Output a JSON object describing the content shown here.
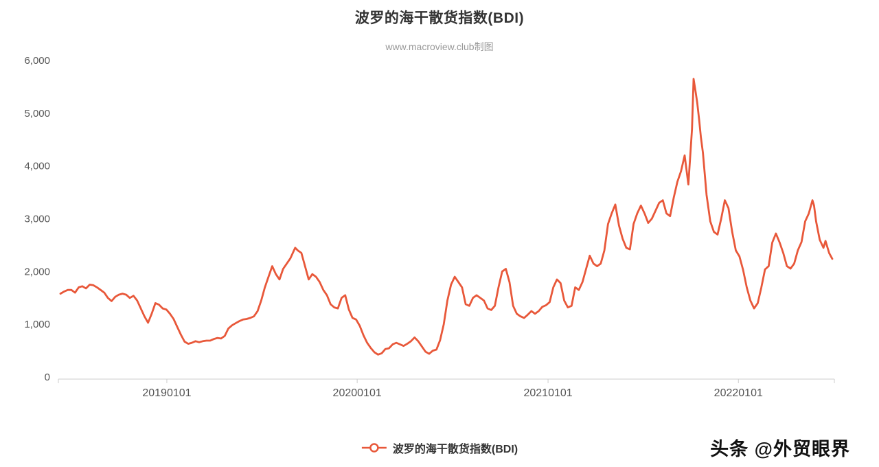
{
  "header": {
    "title": "波罗的海干散货指数(BDI)",
    "subtitle": "www.macroview.club制图"
  },
  "legend": {
    "label": "波罗的海干散货指数(BDI)"
  },
  "watermark": "头条 @外贸眼界",
  "chart_data": {
    "type": "line",
    "title": "波罗的海干散货指数(BDI)",
    "subtitle": "www.macroview.club制图",
    "series_name": "波罗的海干散货指数(BDI)",
    "line_color": "#e8583a",
    "background": "#ffffff",
    "grid": false,
    "legend_position": "bottom",
    "ylim": [
      0,
      6000
    ],
    "y_ticks": [
      0,
      1000,
      2000,
      3000,
      4000,
      5000,
      6000
    ],
    "y_tick_labels": [
      "0",
      "1,000",
      "2,000",
      "3,000",
      "4,000",
      "5,000",
      "6,000"
    ],
    "x_min": "20180607",
    "x_max": "20220704",
    "x_ticks": [
      "20190101",
      "20200101",
      "20210101",
      "20220101"
    ],
    "points": [
      [
        "20180611",
        1580
      ],
      [
        "20180618",
        1620
      ],
      [
        "20180625",
        1650
      ],
      [
        "20180702",
        1650
      ],
      [
        "20180709",
        1600
      ],
      [
        "20180716",
        1700
      ],
      [
        "20180723",
        1720
      ],
      [
        "20180730",
        1680
      ],
      [
        "20180806",
        1750
      ],
      [
        "20180813",
        1740
      ],
      [
        "20180820",
        1700
      ],
      [
        "20180827",
        1650
      ],
      [
        "20180903",
        1600
      ],
      [
        "20180910",
        1500
      ],
      [
        "20180917",
        1440
      ],
      [
        "20180924",
        1520
      ],
      [
        "20181001",
        1560
      ],
      [
        "20181008",
        1580
      ],
      [
        "20181015",
        1560
      ],
      [
        "20181022",
        1500
      ],
      [
        "20181029",
        1540
      ],
      [
        "20181105",
        1450
      ],
      [
        "20181112",
        1300
      ],
      [
        "20181119",
        1150
      ],
      [
        "20181126",
        1030
      ],
      [
        "20181203",
        1200
      ],
      [
        "20181210",
        1400
      ],
      [
        "20181217",
        1370
      ],
      [
        "20181224",
        1300
      ],
      [
        "20181231",
        1280
      ],
      [
        "20190107",
        1200
      ],
      [
        "20190114",
        1100
      ],
      [
        "20190121",
        950
      ],
      [
        "20190128",
        800
      ],
      [
        "20190204",
        670
      ],
      [
        "20190211",
        630
      ],
      [
        "20190218",
        650
      ],
      [
        "20190225",
        680
      ],
      [
        "20190304",
        660
      ],
      [
        "20190311",
        680
      ],
      [
        "20190318",
        690
      ],
      [
        "20190325",
        690
      ],
      [
        "20190401",
        720
      ],
      [
        "20190408",
        740
      ],
      [
        "20190415",
        730
      ],
      [
        "20190422",
        780
      ],
      [
        "20190429",
        920
      ],
      [
        "20190506",
        980
      ],
      [
        "20190513",
        1020
      ],
      [
        "20190520",
        1060
      ],
      [
        "20190527",
        1090
      ],
      [
        "20190603",
        1100
      ],
      [
        "20190610",
        1120
      ],
      [
        "20190617",
        1150
      ],
      [
        "20190624",
        1250
      ],
      [
        "20190701",
        1450
      ],
      [
        "20190708",
        1700
      ],
      [
        "20190715",
        1900
      ],
      [
        "20190722",
        2100
      ],
      [
        "20190729",
        1950
      ],
      [
        "20190805",
        1850
      ],
      [
        "20190812",
        2050
      ],
      [
        "20190819",
        2150
      ],
      [
        "20190826",
        2250
      ],
      [
        "20190904",
        2450
      ],
      [
        "20190909",
        2400
      ],
      [
        "20190916",
        2350
      ],
      [
        "20190923",
        2100
      ],
      [
        "20190930",
        1850
      ],
      [
        "20191007",
        1950
      ],
      [
        "20191014",
        1900
      ],
      [
        "20191021",
        1800
      ],
      [
        "20191028",
        1650
      ],
      [
        "20191104",
        1550
      ],
      [
        "20191111",
        1380
      ],
      [
        "20191118",
        1320
      ],
      [
        "20191125",
        1300
      ],
      [
        "20191202",
        1500
      ],
      [
        "20191209",
        1550
      ],
      [
        "20191216",
        1280
      ],
      [
        "20191223",
        1120
      ],
      [
        "20191230",
        1090
      ],
      [
        "20200106",
        970
      ],
      [
        "20200113",
        790
      ],
      [
        "20200120",
        650
      ],
      [
        "20200127",
        550
      ],
      [
        "20200203",
        470
      ],
      [
        "20200210",
        425
      ],
      [
        "20200217",
        450
      ],
      [
        "20200224",
        530
      ],
      [
        "20200302",
        545
      ],
      [
        "20200309",
        620
      ],
      [
        "20200316",
        650
      ],
      [
        "20200323",
        620
      ],
      [
        "20200330",
        590
      ],
      [
        "20200406",
        630
      ],
      [
        "20200413",
        680
      ],
      [
        "20200420",
        750
      ],
      [
        "20200427",
        680
      ],
      [
        "20200504",
        580
      ],
      [
        "20200511",
        480
      ],
      [
        "20200518",
        440
      ],
      [
        "20200525",
        500
      ],
      [
        "20200601",
        520
      ],
      [
        "20200608",
        700
      ],
      [
        "20200615",
        1000
      ],
      [
        "20200622",
        1450
      ],
      [
        "20200629",
        1750
      ],
      [
        "20200706",
        1900
      ],
      [
        "20200713",
        1800
      ],
      [
        "20200720",
        1700
      ],
      [
        "20200727",
        1380
      ],
      [
        "20200803",
        1350
      ],
      [
        "20200810",
        1500
      ],
      [
        "20200817",
        1550
      ],
      [
        "20200824",
        1500
      ],
      [
        "20200831",
        1450
      ],
      [
        "20200907",
        1300
      ],
      [
        "20200914",
        1270
      ],
      [
        "20200921",
        1350
      ],
      [
        "20200928",
        1700
      ],
      [
        "20201005",
        2000
      ],
      [
        "20201012",
        2050
      ],
      [
        "20201019",
        1800
      ],
      [
        "20201026",
        1350
      ],
      [
        "20201102",
        1200
      ],
      [
        "20201109",
        1150
      ],
      [
        "20201116",
        1120
      ],
      [
        "20201123",
        1180
      ],
      [
        "20201130",
        1250
      ],
      [
        "20201207",
        1200
      ],
      [
        "20201214",
        1250
      ],
      [
        "20201221",
        1330
      ],
      [
        "20201228",
        1360
      ],
      [
        "20210104",
        1420
      ],
      [
        "20210111",
        1700
      ],
      [
        "20210118",
        1850
      ],
      [
        "20210125",
        1780
      ],
      [
        "20210201",
        1450
      ],
      [
        "20210208",
        1320
      ],
      [
        "20210215",
        1350
      ],
      [
        "20210222",
        1700
      ],
      [
        "20210301",
        1650
      ],
      [
        "20210308",
        1800
      ],
      [
        "20210315",
        2050
      ],
      [
        "20210322",
        2300
      ],
      [
        "20210329",
        2150
      ],
      [
        "20210405",
        2100
      ],
      [
        "20210412",
        2150
      ],
      [
        "20210419",
        2400
      ],
      [
        "20210426",
        2900
      ],
      [
        "20210503",
        3100
      ],
      [
        "20210510",
        3270
      ],
      [
        "20210517",
        2870
      ],
      [
        "20210524",
        2620
      ],
      [
        "20210531",
        2450
      ],
      [
        "20210607",
        2420
      ],
      [
        "20210614",
        2900
      ],
      [
        "20210621",
        3100
      ],
      [
        "20210628",
        3250
      ],
      [
        "20210705",
        3100
      ],
      [
        "20210712",
        2920
      ],
      [
        "20210719",
        3000
      ],
      [
        "20210726",
        3150
      ],
      [
        "20210802",
        3300
      ],
      [
        "20210809",
        3350
      ],
      [
        "20210816",
        3100
      ],
      [
        "20210823",
        3050
      ],
      [
        "20210830",
        3400
      ],
      [
        "20210906",
        3700
      ],
      [
        "20210913",
        3900
      ],
      [
        "20210920",
        4200
      ],
      [
        "20210927",
        3650
      ],
      [
        "20211004",
        4700
      ],
      [
        "20211007",
        5650
      ],
      [
        "20211011",
        5400
      ],
      [
        "20211014",
        5200
      ],
      [
        "20211018",
        4850
      ],
      [
        "20211021",
        4550
      ],
      [
        "20211025",
        4250
      ],
      [
        "20211101",
        3450
      ],
      [
        "20211108",
        2950
      ],
      [
        "20211115",
        2750
      ],
      [
        "20211122",
        2700
      ],
      [
        "20211129",
        3000
      ],
      [
        "20211206",
        3350
      ],
      [
        "20211213",
        3200
      ],
      [
        "20211220",
        2750
      ],
      [
        "20211227",
        2400
      ],
      [
        "20220103",
        2285
      ],
      [
        "20220110",
        2030
      ],
      [
        "20220117",
        1700
      ],
      [
        "20220124",
        1450
      ],
      [
        "20220131",
        1300
      ],
      [
        "20220207",
        1400
      ],
      [
        "20220214",
        1700
      ],
      [
        "20220221",
        2040
      ],
      [
        "20220228",
        2100
      ],
      [
        "20220307",
        2550
      ],
      [
        "20220314",
        2720
      ],
      [
        "20220321",
        2550
      ],
      [
        "20220328",
        2350
      ],
      [
        "20220404",
        2100
      ],
      [
        "20220411",
        2055
      ],
      [
        "20220418",
        2150
      ],
      [
        "20220425",
        2400
      ],
      [
        "20220502",
        2560
      ],
      [
        "20220509",
        2950
      ],
      [
        "20220516",
        3100
      ],
      [
        "20220523",
        3350
      ],
      [
        "20220526",
        3250
      ],
      [
        "20220530",
        2950
      ],
      [
        "20220606",
        2600
      ],
      [
        "20220613",
        2450
      ],
      [
        "20220617",
        2580
      ],
      [
        "20220624",
        2350
      ],
      [
        "20220630",
        2240
      ]
    ]
  }
}
